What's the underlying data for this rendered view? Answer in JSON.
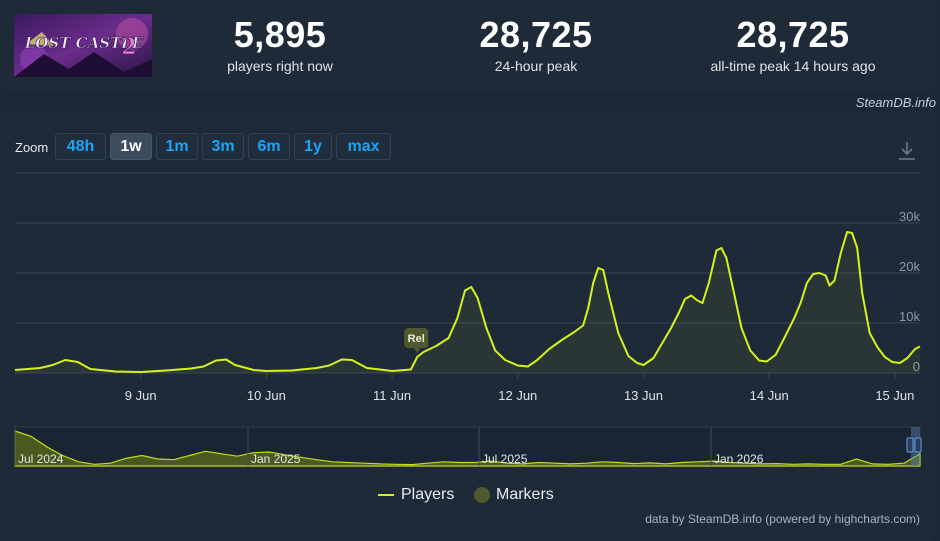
{
  "stats": [
    {
      "value": "5,895",
      "label": "players right now"
    },
    {
      "value": "28,725",
      "label": "24-hour peak"
    },
    {
      "value": "28,725",
      "label": "all-time peak 14 hours ago"
    }
  ],
  "header": {
    "credit": "SteamDB.info",
    "thumb_title": "LOST CASTLE 2"
  },
  "zoom": {
    "label": "Zoom",
    "buttons": [
      "48h",
      "1w",
      "1m",
      "3m",
      "6m",
      "1y",
      "max"
    ],
    "selected": "1w"
  },
  "colors": {
    "line": "#d6f21c",
    "marker": "#4e5a2e",
    "background": "#1f2a38"
  },
  "chart_data": {
    "type": "line",
    "series": [
      {
        "name": "Players",
        "points": [
          [
            8.0,
            600
          ],
          [
            8.2,
            1000
          ],
          [
            8.3,
            1600
          ],
          [
            8.4,
            2600
          ],
          [
            8.5,
            2200
          ],
          [
            8.6,
            800
          ],
          [
            8.8,
            300
          ],
          [
            9.0,
            200
          ],
          [
            9.2,
            500
          ],
          [
            9.4,
            900
          ],
          [
            9.5,
            1300
          ],
          [
            9.6,
            2500
          ],
          [
            9.68,
            2700
          ],
          [
            9.75,
            1600
          ],
          [
            9.9,
            600
          ],
          [
            10.0,
            400
          ],
          [
            10.2,
            500
          ],
          [
            10.4,
            1000
          ],
          [
            10.5,
            1500
          ],
          [
            10.6,
            2700
          ],
          [
            10.68,
            2600
          ],
          [
            10.8,
            1000
          ],
          [
            11.0,
            400
          ],
          [
            11.15,
            700
          ],
          [
            11.2,
            3200
          ],
          [
            11.25,
            4200
          ],
          [
            11.35,
            5400
          ],
          [
            11.45,
            7000
          ],
          [
            11.52,
            11000
          ],
          [
            11.58,
            16500
          ],
          [
            11.63,
            17200
          ],
          [
            11.68,
            15000
          ],
          [
            11.75,
            9000
          ],
          [
            11.82,
            4500
          ],
          [
            11.9,
            2600
          ],
          [
            12.0,
            1500
          ],
          [
            12.08,
            1300
          ],
          [
            12.15,
            2500
          ],
          [
            12.25,
            4800
          ],
          [
            12.35,
            6600
          ],
          [
            12.45,
            8200
          ],
          [
            12.52,
            9500
          ],
          [
            12.56,
            13000
          ],
          [
            12.6,
            18000
          ],
          [
            12.64,
            21000
          ],
          [
            12.68,
            20600
          ],
          [
            12.72,
            16000
          ],
          [
            12.8,
            8000
          ],
          [
            12.88,
            3400
          ],
          [
            12.95,
            2000
          ],
          [
            13.0,
            1600
          ],
          [
            13.08,
            3000
          ],
          [
            13.15,
            6000
          ],
          [
            13.22,
            9000
          ],
          [
            13.28,
            12000
          ],
          [
            13.33,
            14800
          ],
          [
            13.38,
            15500
          ],
          [
            13.43,
            14500
          ],
          [
            13.47,
            14000
          ],
          [
            13.52,
            18000
          ],
          [
            13.58,
            24500
          ],
          [
            13.62,
            25000
          ],
          [
            13.66,
            23000
          ],
          [
            13.72,
            16000
          ],
          [
            13.78,
            9000
          ],
          [
            13.85,
            4500
          ],
          [
            13.92,
            2500
          ],
          [
            13.98,
            2300
          ],
          [
            14.05,
            3600
          ],
          [
            14.12,
            7000
          ],
          [
            14.2,
            11000
          ],
          [
            14.25,
            14000
          ],
          [
            14.3,
            18000
          ],
          [
            14.35,
            19800
          ],
          [
            14.4,
            20000
          ],
          [
            14.45,
            19500
          ],
          [
            14.48,
            17500
          ],
          [
            14.52,
            18500
          ],
          [
            14.57,
            24000
          ],
          [
            14.62,
            28200
          ],
          [
            14.66,
            28000
          ],
          [
            14.7,
            25000
          ],
          [
            14.74,
            16000
          ],
          [
            14.8,
            8000
          ],
          [
            14.86,
            5200
          ],
          [
            14.92,
            3200
          ],
          [
            14.98,
            2200
          ],
          [
            15.04,
            2000
          ],
          [
            15.1,
            3000
          ],
          [
            15.16,
            4800
          ],
          [
            15.2,
            5300
          ]
        ]
      }
    ],
    "markers": [
      {
        "x": 11.2,
        "label": "Rel"
      }
    ],
    "x_ticks": [
      "9 Jun",
      "10 Jun",
      "11 Jun",
      "12 Jun",
      "13 Jun",
      "14 Jun",
      "15 Jun"
    ],
    "y_ticks": [
      "0",
      "10k",
      "20k",
      "30k"
    ],
    "ylim": [
      0,
      40000
    ],
    "xlim": [
      8.0,
      15.2
    ],
    "grid": true,
    "navigator": {
      "labels": [
        "Jul 2024",
        "Jan 2025",
        "Jul 2025",
        "Jan 2026"
      ],
      "values": [
        1.0,
        0.85,
        0.55,
        0.3,
        0.12,
        0.05,
        0.08,
        0.22,
        0.3,
        0.2,
        0.18,
        0.3,
        0.42,
        0.35,
        0.28,
        0.38,
        0.4,
        0.32,
        0.25,
        0.18,
        0.12,
        0.1,
        0.08,
        0.06,
        0.05,
        0.04,
        0.08,
        0.12,
        0.1,
        0.1,
        0.14,
        0.08,
        0.06,
        0.1,
        0.08,
        0.06,
        0.08,
        0.12,
        0.1,
        0.07,
        0.09,
        0.06,
        0.1,
        0.12,
        0.14,
        0.1,
        0.08,
        0.06,
        0.07,
        0.05,
        0.06,
        0.05,
        0.05,
        0.2,
        0.06,
        0.05,
        0.08,
        0.35
      ]
    },
    "legend": [
      {
        "name": "Players",
        "kind": "line"
      },
      {
        "name": "Markers",
        "kind": "dot"
      }
    ],
    "legend_position": "bottom",
    "credit": "data by SteamDB.info (powered by highcharts.com)"
  }
}
